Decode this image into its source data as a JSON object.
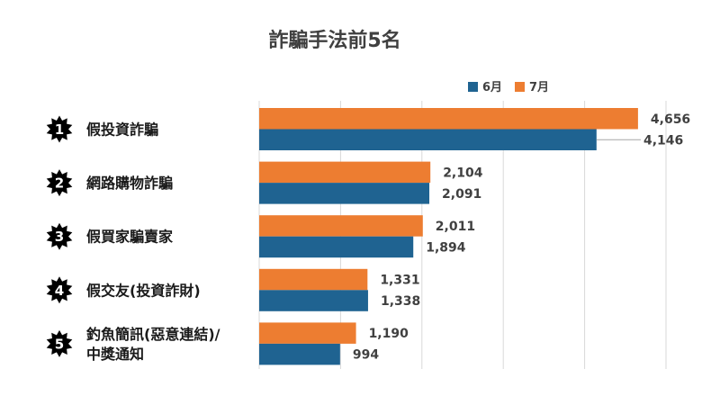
{
  "chart_data": {
    "type": "bar",
    "orientation": "horizontal",
    "title": "詐騙手法前5名",
    "categories": [
      {
        "rank": "1",
        "lines": [
          "假投資詐騙"
        ]
      },
      {
        "rank": "2",
        "lines": [
          "網路購物詐騙"
        ]
      },
      {
        "rank": "3",
        "lines": [
          "假買家騙賣家"
        ]
      },
      {
        "rank": "4",
        "lines": [
          "假交友(投資詐財)"
        ]
      },
      {
        "rank": "5",
        "lines": [
          "釣魚簡訊(惡意連結)/",
          "中獎通知"
        ]
      }
    ],
    "series": [
      {
        "name": "7月",
        "color": "#ed7d31",
        "values": [
          4656,
          2104,
          2011,
          1331,
          1190
        ],
        "labels": [
          "4,656",
          "2,104",
          "2,011",
          "1,331",
          "1,190"
        ]
      },
      {
        "name": "6月",
        "color": "#1f6391",
        "values": [
          4146,
          2091,
          1894,
          1338,
          994
        ],
        "labels": [
          "4,146",
          "2,091",
          "1,894",
          "1,338",
          "994"
        ]
      }
    ],
    "legend_order": [
      "6月",
      "7月"
    ],
    "xlim": [
      0,
      5000
    ],
    "grid": true,
    "legend_position": "top"
  }
}
